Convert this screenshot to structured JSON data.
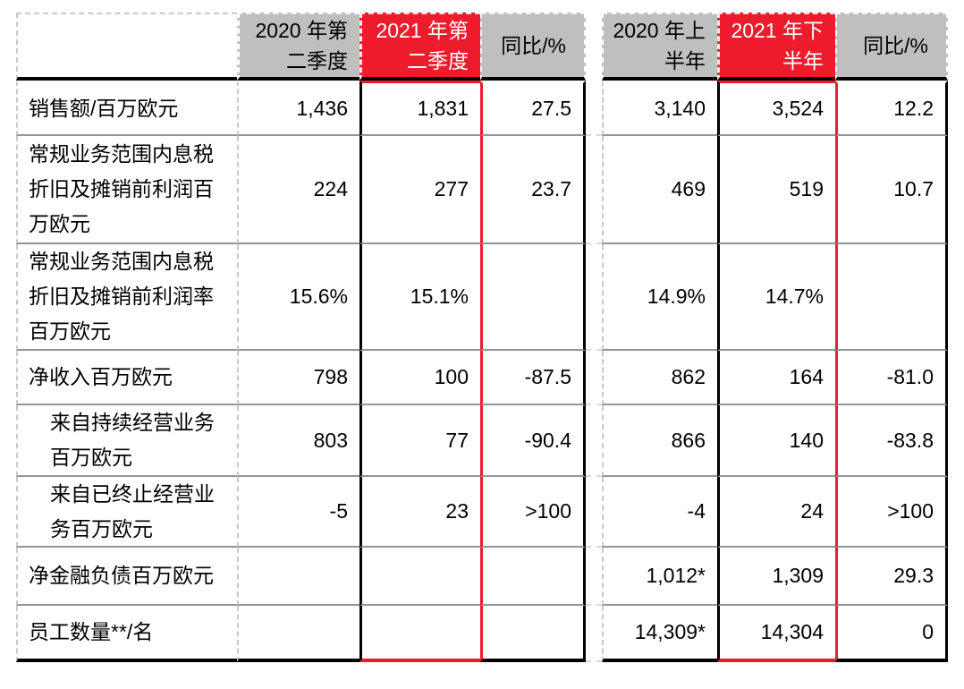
{
  "colors": {
    "accent_red": "#ED1C2D",
    "header_gray": "#BFBFBF"
  },
  "table": {
    "header": {
      "corner": "",
      "q2020": "2020 年第\n二季度",
      "q2021": "2021 年第\n二季度",
      "yoy_q": "同比/%",
      "h2020": "2020 年上\n半年",
      "h2021": "2021 年下\n半年",
      "yoy_h": "同比/%"
    },
    "rows": [
      {
        "label": "销售额/百万欧元",
        "q2020": "1,436",
        "q2021": "1,831",
        "yoy_q": "27.5",
        "h2020": "3,140",
        "h2021": "3,524",
        "yoy_h": "12.2"
      },
      {
        "label": "常规业务范围内息税\n折旧及摊销前利润百\n万欧元",
        "q2020": "224",
        "q2021": "277",
        "yoy_q": "23.7",
        "h2020": "469",
        "h2021": "519",
        "yoy_h": "10.7"
      },
      {
        "label": "常规业务范围内息税\n折旧及摊销前利润率\n百万欧元",
        "q2020": "15.6%",
        "q2021": "15.1%",
        "yoy_q": "",
        "h2020": "14.9%",
        "h2021": "14.7%",
        "yoy_h": ""
      },
      {
        "label": "净收入百万欧元",
        "q2020": "798",
        "q2021": "100",
        "yoy_q": "-87.5",
        "h2020": "862",
        "h2021": "164",
        "yoy_h": "-81.0"
      },
      {
        "label": "来自持续经营业务\n百万欧元",
        "q2020": "803",
        "q2021": "77",
        "yoy_q": "-90.4",
        "h2020": "866",
        "h2021": "140",
        "yoy_h": "-83.8"
      },
      {
        "label": "来自已终止经营业\n务百万欧元",
        "q2020": "-5",
        "q2021": "23",
        "yoy_q": ">100",
        "h2020": "-4",
        "h2021": "24",
        "yoy_h": ">100"
      },
      {
        "label": "净金融负债百万欧元",
        "q2020": "",
        "q2021": "",
        "yoy_q": "",
        "h2020": "1,012*",
        "h2021": "1,309",
        "yoy_h": "29.3"
      },
      {
        "label": "员工数量**/名",
        "q2020": "",
        "q2021": "",
        "yoy_q": "",
        "h2020": "14,309*",
        "h2021": "14,304",
        "yoy_h": "0"
      }
    ]
  }
}
